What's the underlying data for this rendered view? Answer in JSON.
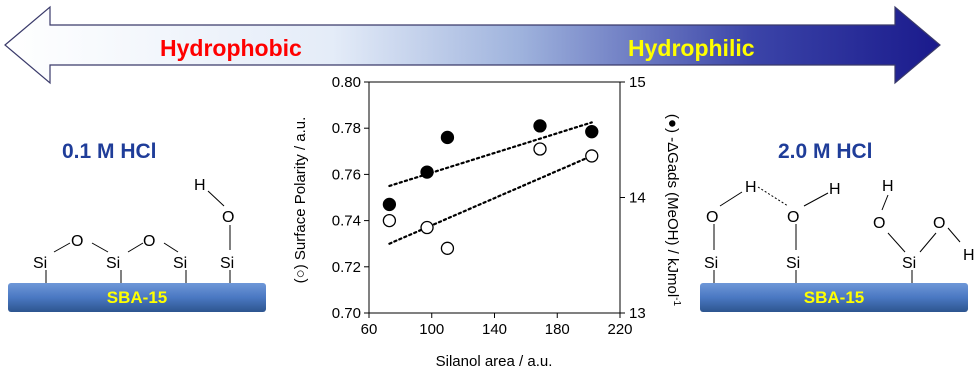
{
  "banner": {
    "left_label": "Hydrophobic",
    "right_label": "Hydrophilic",
    "left_label_color": "#ff0000",
    "right_label_color": "#ffff00",
    "gradient_start": "#ffffff",
    "gradient_end": "#1a1a8c"
  },
  "left_panel": {
    "condition": "0.1 M HCl",
    "support_label": "SBA-15",
    "atoms": {
      "si": "Si",
      "o": "O",
      "h": "H"
    }
  },
  "right_panel": {
    "condition": "2.0 M HCl",
    "support_label": "SBA-15",
    "atoms": {
      "si": "Si",
      "o": "O",
      "h": "H"
    }
  },
  "colors": {
    "support_bar": "#4a78c2",
    "support_label": "#ffff00",
    "condition_text": "#1f3d99"
  },
  "chart_data": {
    "type": "scatter",
    "xlabel": "Silanol area / a.u.",
    "ylabel_left": "(○) Surface Polarity / a.u.",
    "ylabel_right": "(●) -ΔGads (MeOH) / kJmol",
    "ylabel_right_sup": "-1",
    "xlim": [
      60,
      220
    ],
    "ylim_left": [
      0.7,
      0.8
    ],
    "ylim_right": [
      13,
      15
    ],
    "x_ticks": [
      "60",
      "100",
      "140",
      "180",
      "220"
    ],
    "y_left_ticks": [
      "0.70",
      "0.72",
      "0.74",
      "0.76",
      "0.78",
      "0.80"
    ],
    "y_right_ticks": [
      "13",
      "14",
      "15"
    ],
    "series": [
      {
        "name": "Surface Polarity",
        "marker": "open-circle",
        "axis": "left",
        "points": [
          [
            73,
            0.74
          ],
          [
            97,
            0.737
          ],
          [
            110,
            0.728
          ],
          [
            169,
            0.771
          ],
          [
            202,
            0.768
          ]
        ],
        "trend": [
          [
            73,
            0.73
          ],
          [
            202,
            0.768
          ]
        ]
      },
      {
        "name": "-ΔGads (MeOH)",
        "marker": "filled-circle",
        "axis": "right",
        "points": [
          [
            73,
            13.94
          ],
          [
            97,
            14.22
          ],
          [
            110,
            14.52
          ],
          [
            169,
            14.62
          ],
          [
            202,
            14.57
          ]
        ],
        "trend": [
          [
            73,
            14.1
          ],
          [
            202,
            14.65
          ]
        ]
      }
    ]
  }
}
